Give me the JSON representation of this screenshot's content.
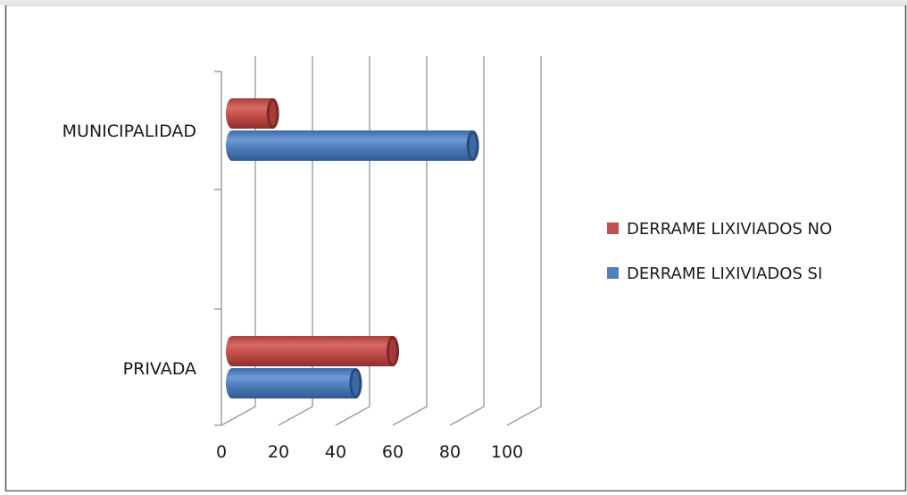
{
  "chart_data": {
    "type": "bar",
    "orientation": "horizontal",
    "style": "3d-cylinder",
    "categories": [
      "MUNICIPALIDAD",
      "PRIVADA"
    ],
    "series": [
      {
        "name": "DERRAME LIXIVIADOS NO",
        "color": "#c0504d",
        "values": [
          18,
          60
        ]
      },
      {
        "name": "DERRAME LIXIVIADOS SI",
        "color": "#4f81bd",
        "values": [
          88,
          47
        ]
      }
    ],
    "x_ticks": [
      "0",
      "20",
      "40",
      "60",
      "80",
      "100"
    ],
    "xlim": [
      0,
      100
    ],
    "grid": true,
    "legend": "right"
  }
}
